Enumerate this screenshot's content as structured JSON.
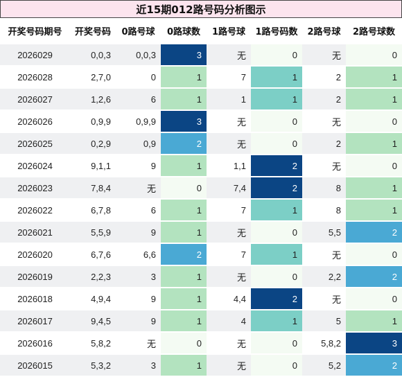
{
  "title": "近15期012路号码分析图示",
  "headers": [
    "开奖号码期号",
    "开奖号码",
    "0路号球",
    "0路球数",
    "1路号球",
    "1路号码数",
    "2路号球",
    "2路号球数"
  ],
  "rows": [
    [
      "2026029",
      "0,0,3",
      "0,0,3",
      "3",
      "无",
      "0",
      "无",
      "0"
    ],
    [
      "2026028",
      "2,7,0",
      "0",
      "1",
      "7",
      "1",
      "2",
      "1"
    ],
    [
      "2026027",
      "1,2,6",
      "6",
      "1",
      "1",
      "1",
      "2",
      "1"
    ],
    [
      "2026026",
      "0,9,9",
      "0,9,9",
      "3",
      "无",
      "0",
      "无",
      "0"
    ],
    [
      "2026025",
      "0,2,9",
      "0,9",
      "2",
      "无",
      "0",
      "2",
      "1"
    ],
    [
      "2026024",
      "9,1,1",
      "9",
      "1",
      "1,1",
      "2",
      "无",
      "0"
    ],
    [
      "2026023",
      "7,8,4",
      "无",
      "0",
      "7,4",
      "2",
      "8",
      "1"
    ],
    [
      "2026022",
      "6,7,8",
      "6",
      "1",
      "7",
      "1",
      "8",
      "1"
    ],
    [
      "2026021",
      "5,5,9",
      "9",
      "1",
      "无",
      "0",
      "5,5",
      "2"
    ],
    [
      "2026020",
      "6,7,6",
      "6,6",
      "2",
      "7",
      "1",
      "无",
      "0"
    ],
    [
      "2026019",
      "2,2,3",
      "3",
      "1",
      "无",
      "0",
      "2,2",
      "2"
    ],
    [
      "2026018",
      "4,9,4",
      "9",
      "1",
      "4,4",
      "2",
      "无",
      "0"
    ],
    [
      "2026017",
      "9,4,5",
      "9",
      "1",
      "4",
      "1",
      "5",
      "1"
    ],
    [
      "2026016",
      "5,8,2",
      "无",
      "0",
      "无",
      "0",
      "5,8,2",
      "3"
    ],
    [
      "2026015",
      "5,3,2",
      "3",
      "1",
      "无",
      "0",
      "5,2",
      "2"
    ]
  ],
  "colors": {
    "title_bg": "#fce4ee",
    "count_0": "#f4fbf3",
    "count_1": "#b3e3bf",
    "count_1_route1": "#7ccfc6",
    "count_2": "#4aa9d4",
    "count_3": "#0b4584"
  }
}
